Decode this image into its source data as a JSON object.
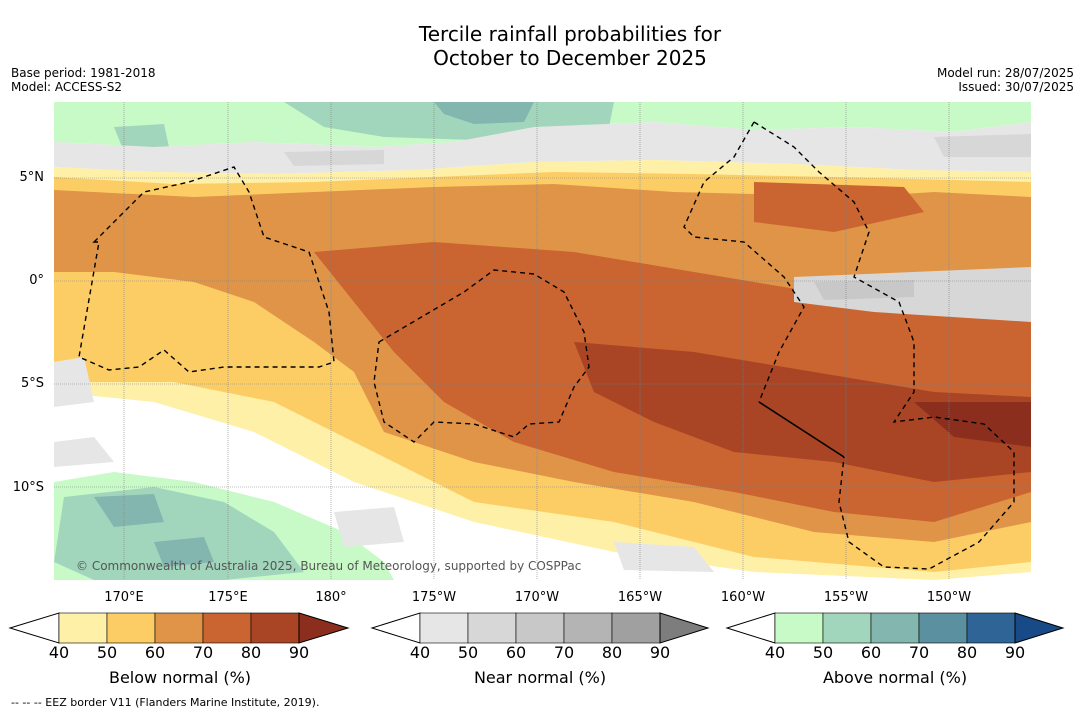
{
  "title": {
    "line1": "Tercile rainfall probabilities for",
    "line2": "October to December 2025"
  },
  "meta_left": {
    "base_period": "Base period: 1981-2018",
    "model": "Model: ACCESS-S2"
  },
  "meta_right": {
    "model_run": "Model run: 28/07/2025",
    "issued": "Issued: 30/07/2025"
  },
  "map": {
    "lat_labels": [
      "5°N",
      "0°",
      "5°S",
      "10°S"
    ],
    "lon_labels": [
      "170°E",
      "175°E",
      "180°",
      "175°W",
      "170°W",
      "165°W",
      "160°W",
      "155°W",
      "150°W"
    ],
    "copyright": "© Commonwealth of Australia 2025, Bureau of Meteorology, supported by COSPPac"
  },
  "colorbars": [
    {
      "label": "Below normal (%)",
      "ticks": [
        "40",
        "50",
        "60",
        "70",
        "80",
        "90"
      ],
      "colors": [
        "#fff0a8",
        "#fdcd65",
        "#e09447",
        "#ca6430",
        "#a94524",
        "#8c2e1e"
      ]
    },
    {
      "label": "Near normal (%)",
      "ticks": [
        "40",
        "50",
        "60",
        "70",
        "80",
        "90"
      ],
      "colors": [
        "#e6e6e6",
        "#d7d7d7",
        "#c8c8c8",
        "#b4b4b4",
        "#a0a0a0",
        "#7d7d7d"
      ]
    },
    {
      "label": "Above normal (%)",
      "ticks": [
        "40",
        "50",
        "60",
        "70",
        "80",
        "90"
      ],
      "colors": [
        "#c8fac8",
        "#a2d6bc",
        "#82b6ae",
        "#5a90a0",
        "#2f6496",
        "#174a86"
      ]
    }
  ],
  "footer": "--  --  -- EEZ border V11 (Flanders Marine Institute, 2019)."
}
